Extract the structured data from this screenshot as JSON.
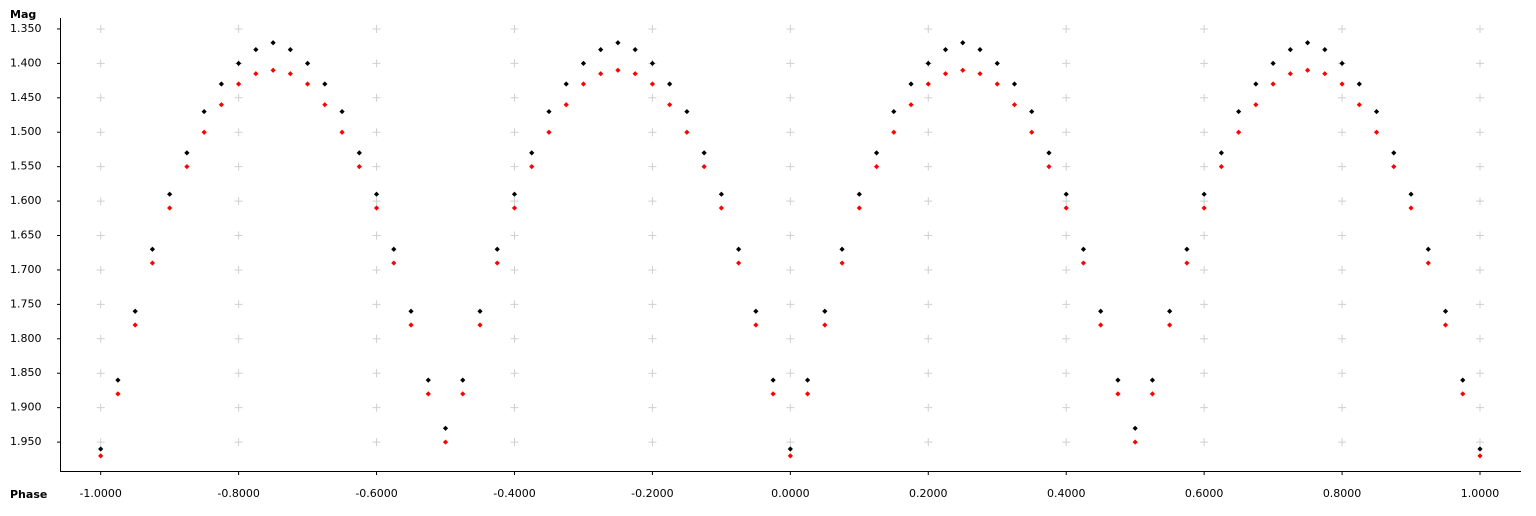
{
  "chart_data": {
    "type": "scatter",
    "y_label": "Mag",
    "x_label": "Phase",
    "xlim": [
      -1.059,
      1.058
    ],
    "ylim": [
      1.337,
      1.992
    ],
    "y_reversed": true,
    "grid": true,
    "xticks": [
      {
        "value": -1.0,
        "label": "-1.0000"
      },
      {
        "value": -0.8,
        "label": "-0.8000"
      },
      {
        "value": -0.6,
        "label": "-0.6000"
      },
      {
        "value": -0.4,
        "label": "-0.4000"
      },
      {
        "value": -0.2,
        "label": "-0.2000"
      },
      {
        "value": 0,
        "label": "0.0000"
      },
      {
        "value": 0.2,
        "label": "0.2000"
      },
      {
        "value": 0.4,
        "label": "0.4000"
      },
      {
        "value": 0.6,
        "label": "0.6000"
      },
      {
        "value": 0.8,
        "label": "0.8000"
      },
      {
        "value": 1.0,
        "label": "1.0000"
      }
    ],
    "yticks": [
      {
        "value": 1.35,
        "label": "1.350"
      },
      {
        "value": 1.4,
        "label": "1.400"
      },
      {
        "value": 1.45,
        "label": "1.450"
      },
      {
        "value": 1.5,
        "label": "1.500"
      },
      {
        "value": 1.55,
        "label": "1.550"
      },
      {
        "value": 1.6,
        "label": "1.600"
      },
      {
        "value": 1.65,
        "label": "1.650"
      },
      {
        "value": 1.7,
        "label": "1.700"
      },
      {
        "value": 1.75,
        "label": "1.750"
      },
      {
        "value": 1.8,
        "label": "1.800"
      },
      {
        "value": 1.85,
        "label": "1.850"
      },
      {
        "value": 1.9,
        "label": "1.900"
      },
      {
        "value": 1.95,
        "label": "1.950"
      }
    ],
    "x": [
      -1.0,
      -0.975,
      -0.95,
      -0.925,
      -0.9,
      -0.875,
      -0.85,
      -0.825,
      -0.8,
      -0.775,
      -0.75,
      -0.725,
      -0.7,
      -0.675,
      -0.65,
      -0.625,
      -0.6,
      -0.575,
      -0.55,
      -0.525,
      -0.5,
      -0.475,
      -0.45,
      -0.425,
      -0.4,
      -0.375,
      -0.35,
      -0.325,
      -0.3,
      -0.275,
      -0.25,
      -0.225,
      -0.2,
      -0.175,
      -0.15,
      -0.125,
      -0.1,
      -0.075,
      -0.05,
      -0.025,
      0,
      0.025,
      0.05,
      0.075,
      0.1,
      0.125,
      0.15,
      0.175,
      0.2,
      0.225,
      0.25,
      0.275,
      0.3,
      0.325,
      0.35,
      0.375,
      0.4,
      0.425,
      0.45,
      0.475,
      0.5,
      0.525,
      0.55,
      0.575,
      0.6,
      0.625,
      0.65,
      0.675,
      0.7,
      0.725,
      0.75,
      0.775,
      0.8,
      0.825,
      0.85,
      0.875,
      0.9,
      0.925,
      0.95,
      0.975,
      1.0
    ],
    "series": [
      {
        "color": "#000000",
        "values": [
          1.96,
          1.86,
          1.76,
          1.67,
          1.59,
          1.53,
          1.47,
          1.43,
          1.4,
          1.38,
          1.37,
          1.38,
          1.4,
          1.43,
          1.47,
          1.53,
          1.59,
          1.67,
          1.76,
          1.86,
          1.93,
          1.86,
          1.76,
          1.67,
          1.59,
          1.53,
          1.47,
          1.43,
          1.4,
          1.38,
          1.37,
          1.38,
          1.4,
          1.43,
          1.47,
          1.53,
          1.59,
          1.67,
          1.76,
          1.86,
          1.96,
          1.86,
          1.76,
          1.67,
          1.59,
          1.53,
          1.47,
          1.43,
          1.4,
          1.38,
          1.37,
          1.38,
          1.4,
          1.43,
          1.47,
          1.53,
          1.59,
          1.67,
          1.76,
          1.86,
          1.93,
          1.86,
          1.76,
          1.67,
          1.59,
          1.53,
          1.47,
          1.43,
          1.4,
          1.38,
          1.37,
          1.38,
          1.4,
          1.43,
          1.47,
          1.53,
          1.59,
          1.67,
          1.76,
          1.86,
          1.96
        ]
      },
      {
        "color": "#ff0000",
        "values": [
          1.97,
          1.88,
          1.78,
          1.69,
          1.61,
          1.55,
          1.5,
          1.46,
          1.43,
          1.415,
          1.41,
          1.415,
          1.43,
          1.46,
          1.5,
          1.55,
          1.61,
          1.69,
          1.78,
          1.88,
          1.95,
          1.88,
          1.78,
          1.69,
          1.61,
          1.55,
          1.5,
          1.46,
          1.43,
          1.415,
          1.41,
          1.415,
          1.43,
          1.46,
          1.5,
          1.55,
          1.61,
          1.69,
          1.78,
          1.88,
          1.97,
          1.88,
          1.78,
          1.69,
          1.61,
          1.55,
          1.5,
          1.46,
          1.43,
          1.415,
          1.41,
          1.415,
          1.43,
          1.46,
          1.5,
          1.55,
          1.61,
          1.69,
          1.78,
          1.88,
          1.95,
          1.88,
          1.78,
          1.69,
          1.61,
          1.55,
          1.5,
          1.46,
          1.43,
          1.415,
          1.41,
          1.415,
          1.43,
          1.46,
          1.5,
          1.55,
          1.61,
          1.69,
          1.78,
          1.88,
          1.97
        ]
      }
    ]
  }
}
